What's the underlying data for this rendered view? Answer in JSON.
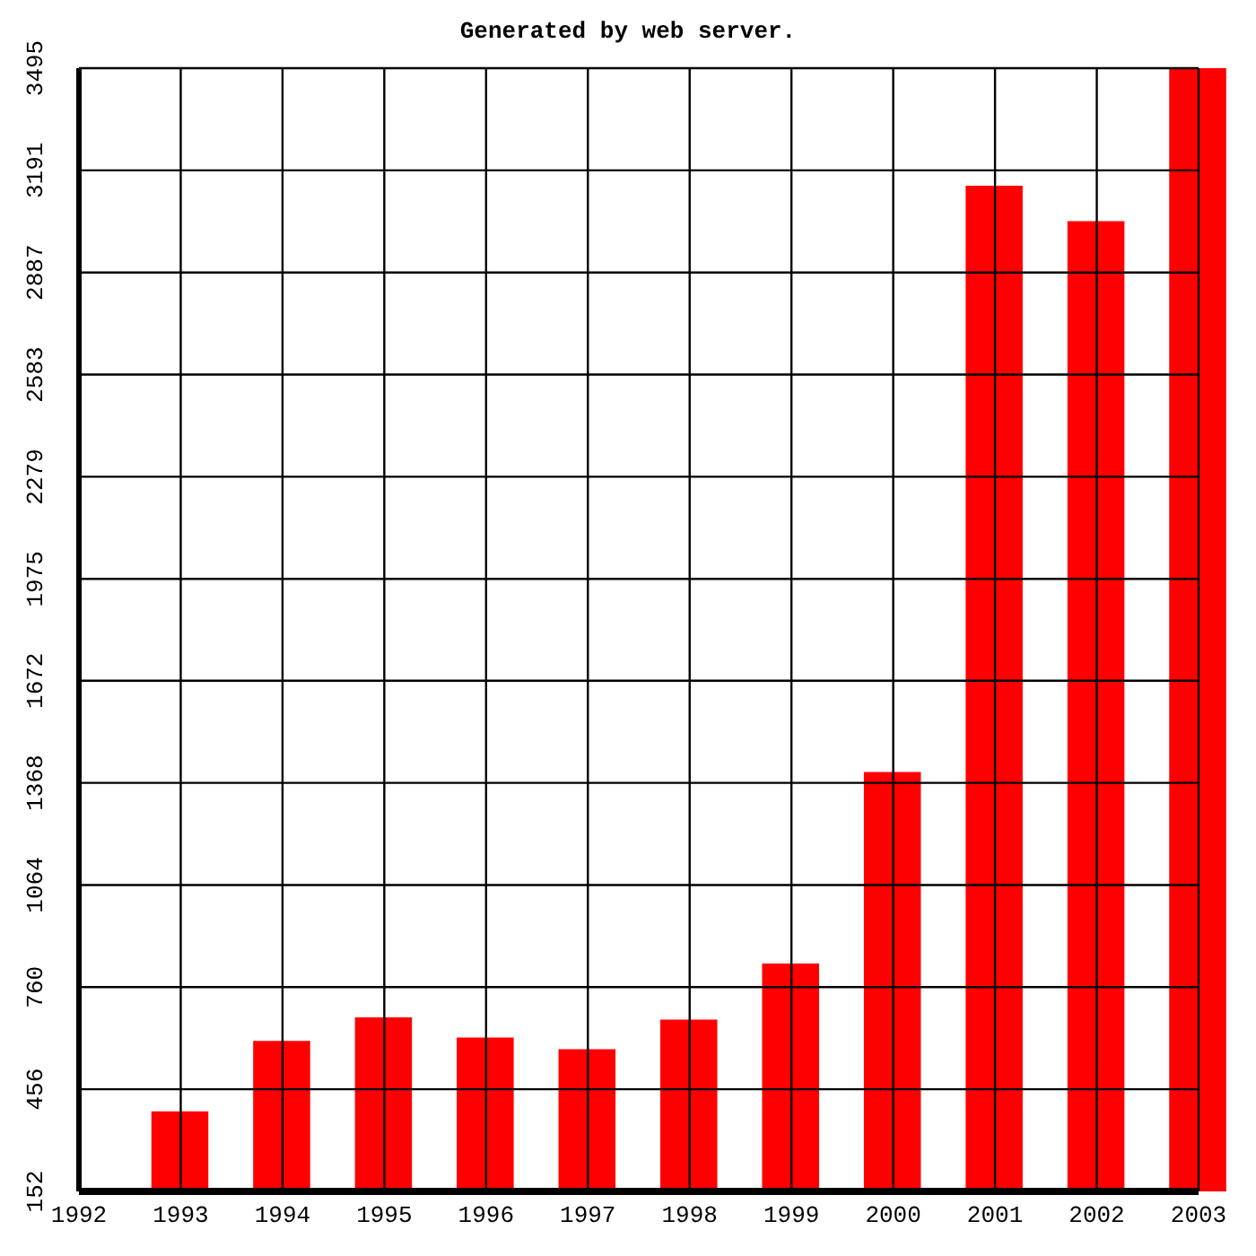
{
  "chart_data": {
    "type": "bar",
    "title": "Generated by web server.",
    "x": [
      1993,
      1994,
      1995,
      1996,
      1997,
      1998,
      1999,
      2000,
      2001,
      2002,
      2003
    ],
    "values": [
      390,
      600,
      670,
      610,
      575,
      663,
      830,
      1400,
      3145,
      3040,
      3495
    ],
    "color": "#ff0000",
    "xlim": [
      1992,
      2003
    ],
    "xticks": [
      1992,
      1993,
      1994,
      1995,
      1996,
      1997,
      1998,
      1999,
      2000,
      2001,
      2002,
      2003
    ],
    "ylim": [
      152,
      3495
    ],
    "yticks": [
      152,
      456,
      760,
      1064,
      1368,
      1672,
      1975,
      2279,
      2583,
      2887,
      3191,
      3495
    ],
    "grid": true
  }
}
